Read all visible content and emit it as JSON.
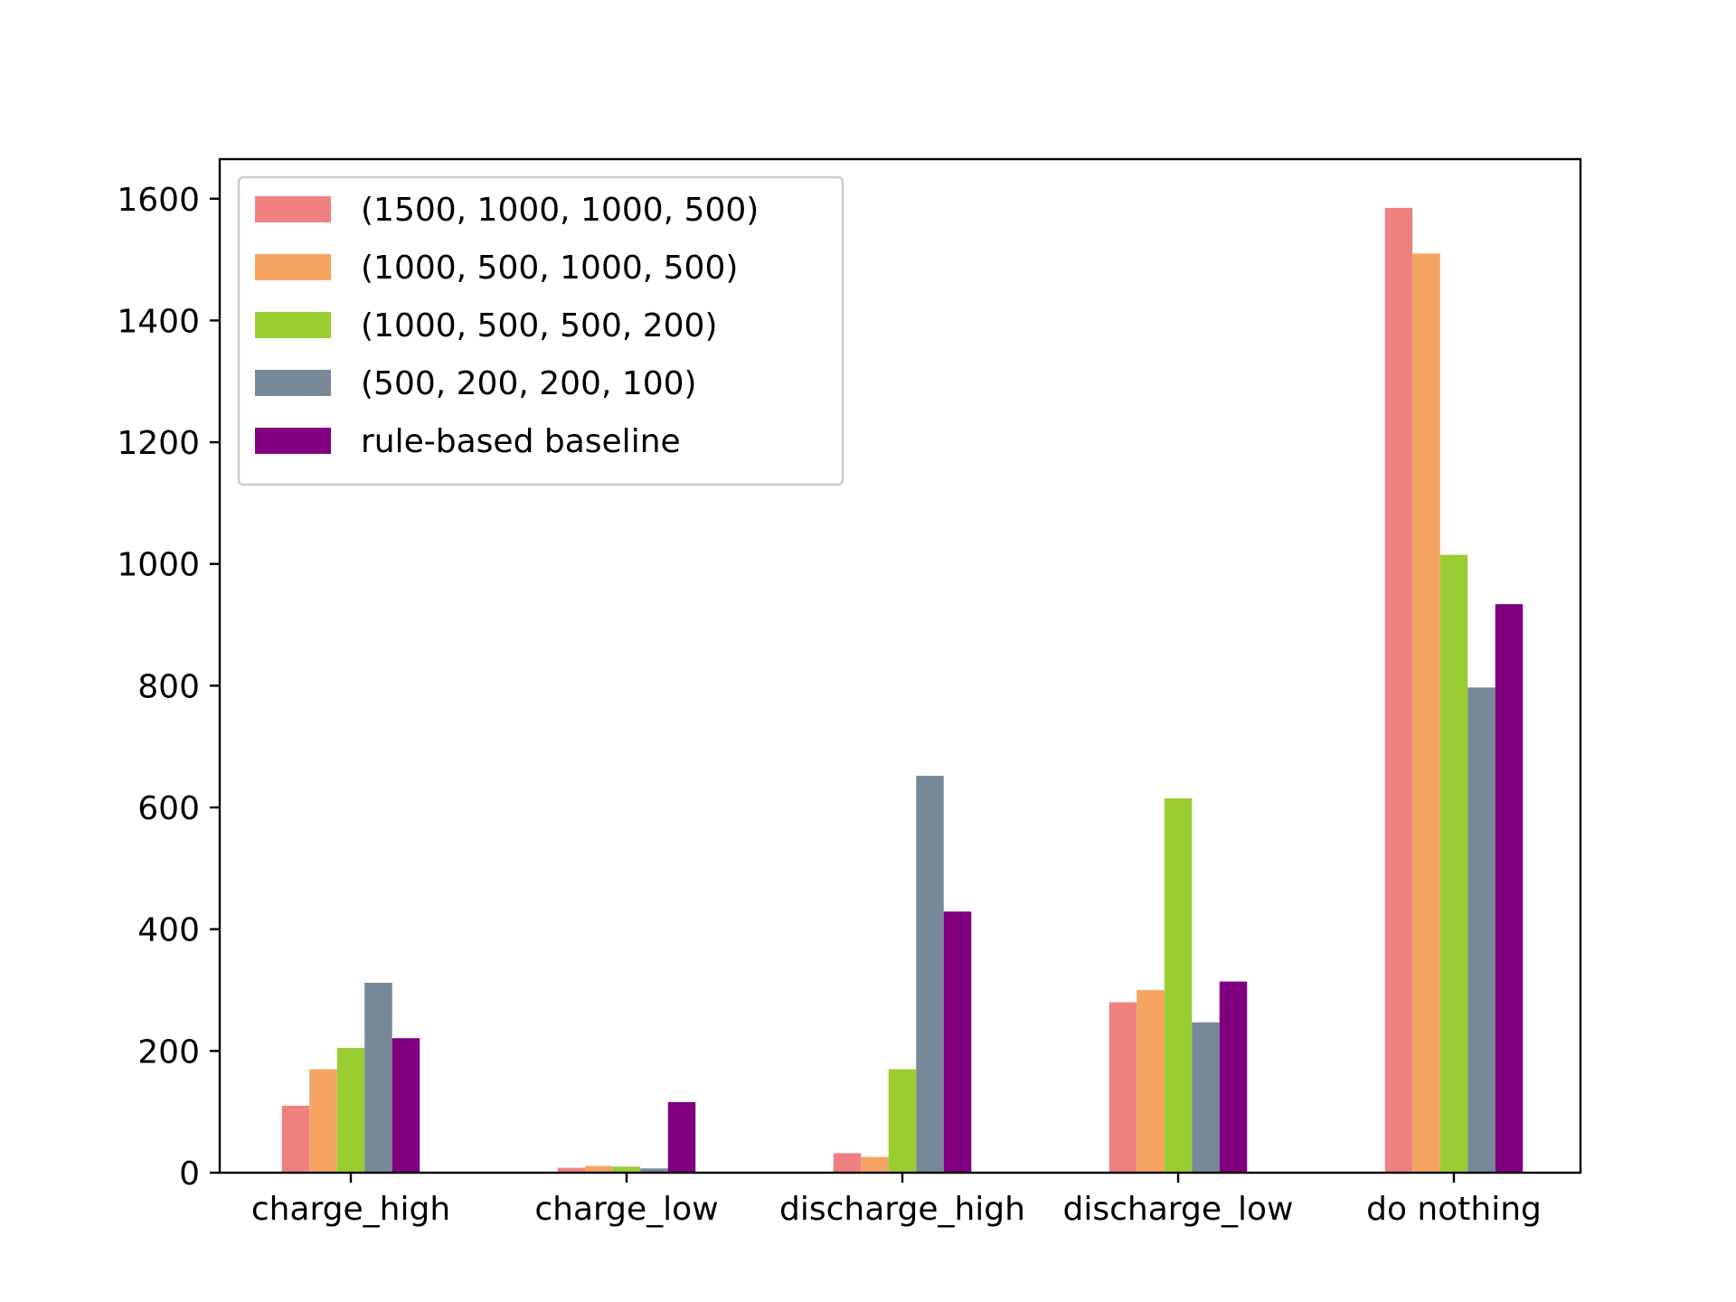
{
  "chart_data": {
    "type": "bar",
    "title": "",
    "xlabel": "",
    "ylabel": "",
    "categories": [
      "charge_high",
      "charge_low",
      "discharge_high",
      "discharge_low",
      "do nothing"
    ],
    "yticks": [
      "0",
      "200",
      "400",
      "600",
      "800",
      "1000",
      "1200",
      "1400",
      "1600"
    ],
    "ylim": [
      0,
      1665
    ],
    "grid": false,
    "legend_position": "top-left",
    "series": [
      {
        "name": "(1500, 1000, 1000, 500)",
        "color": "#f08080",
        "values": [
          110,
          8,
          32,
          280,
          1585
        ]
      },
      {
        "name": "(1000, 500, 1000, 500)",
        "color": "#f4a460",
        "values": [
          170,
          11,
          26,
          300,
          1510
        ]
      },
      {
        "name": "(1000, 500, 500, 200)",
        "color": "#9acd32",
        "values": [
          205,
          10,
          170,
          615,
          1015
        ]
      },
      {
        "name": "(500, 200, 200, 100)",
        "color": "#778899",
        "values": [
          312,
          7,
          652,
          247,
          797
        ]
      },
      {
        "name": "rule-based baseline",
        "color": "#800080",
        "values": [
          221,
          116,
          429,
          314,
          934
        ]
      }
    ]
  }
}
